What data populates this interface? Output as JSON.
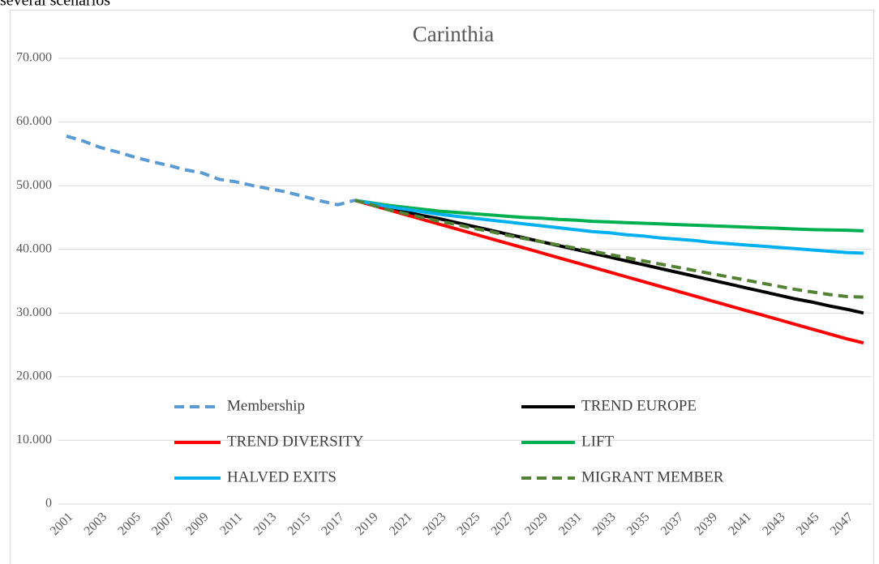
{
  "page_caption": "several scenarios",
  "chart_data": {
    "type": "line",
    "title": "Carinthia",
    "categories": [
      "2001",
      null,
      "2003",
      null,
      "2005",
      null,
      "2007",
      null,
      "2009",
      null,
      "2011",
      null,
      "2013",
      null,
      "2015",
      null,
      "2017",
      null,
      "2019",
      null,
      "2021",
      null,
      "2023",
      null,
      "2025",
      null,
      "2027",
      null,
      "2029",
      null,
      "2031",
      null,
      "2033",
      null,
      "2035",
      null,
      "2037",
      null,
      "2039",
      null,
      "2041",
      null,
      "2043",
      null,
      "2045",
      null,
      "2047",
      null
    ],
    "ylim": [
      0,
      70000
    ],
    "yticks": [
      0,
      {
        "value": 10000,
        "label": "10.000"
      },
      {
        "value": 20000,
        "label": "20.000"
      },
      {
        "value": 30000,
        "label": "30.000"
      },
      {
        "value": 40000,
        "label": "40.000"
      },
      {
        "value": 50000,
        "label": "50.000"
      },
      {
        "value": 60000,
        "label": "60.000"
      },
      {
        "value": 70000,
        "label": "70.000"
      }
    ],
    "grid": true,
    "legend": "bottom",
    "series": [
      {
        "name": "Membership",
        "color": "#5b9bd5",
        "dashed": true,
        "values": [
          57800,
          57000,
          56000,
          55300,
          54500,
          53800,
          53200,
          52500,
          52000,
          51000,
          50600,
          50000,
          49500,
          49000,
          48300,
          47600,
          47000,
          47700,
          null,
          null,
          null,
          null,
          null,
          null,
          null,
          null,
          null,
          null,
          null,
          null,
          null,
          null,
          null,
          null,
          null,
          null,
          null,
          null,
          null,
          null,
          null,
          null,
          null,
          null,
          null,
          null,
          null,
          null
        ]
      },
      {
        "name": "TREND EUROPE",
        "color": "#000000",
        "dashed": false,
        "values": [
          null,
          null,
          null,
          null,
          null,
          null,
          null,
          null,
          null,
          null,
          null,
          null,
          null,
          null,
          null,
          null,
          null,
          47700,
          47100,
          46500,
          45900,
          45300,
          44800,
          44200,
          43600,
          43000,
          42400,
          41800,
          41200,
          40600,
          40000,
          39400,
          38800,
          38200,
          37600,
          37000,
          36400,
          35800,
          35200,
          34600,
          34000,
          33400,
          32800,
          32200,
          31700,
          31100,
          30600,
          30000
        ]
      },
      {
        "name": "TREND DIVERSITY",
        "color": "#ff0000",
        "dashed": false,
        "values": [
          null,
          null,
          null,
          null,
          null,
          null,
          null,
          null,
          null,
          null,
          null,
          null,
          null,
          null,
          null,
          null,
          null,
          47700,
          46950,
          46200,
          45450,
          44700,
          43950,
          43200,
          42450,
          41700,
          40950,
          40200,
          39450,
          38700,
          37950,
          37200,
          36450,
          35700,
          34950,
          34200,
          33450,
          32700,
          31950,
          31200,
          30450,
          29700,
          28950,
          28200,
          27450,
          26700,
          25950,
          25300
        ]
      },
      {
        "name": "LIFT",
        "color": "#00b050",
        "dashed": false,
        "values": [
          null,
          null,
          null,
          null,
          null,
          null,
          null,
          null,
          null,
          null,
          null,
          null,
          null,
          null,
          null,
          null,
          null,
          47700,
          47300,
          46900,
          46600,
          46300,
          46000,
          45800,
          45600,
          45400,
          45200,
          45000,
          44900,
          44700,
          44600,
          44400,
          44300,
          44200,
          44100,
          44000,
          43900,
          43800,
          43700,
          43600,
          43500,
          43400,
          43300,
          43200,
          43100,
          43050,
          43000,
          42900
        ]
      },
      {
        "name": "HALVED EXITS",
        "color": "#00b0f0",
        "dashed": false,
        "values": [
          null,
          null,
          null,
          null,
          null,
          null,
          null,
          null,
          null,
          null,
          null,
          null,
          null,
          null,
          null,
          null,
          null,
          47700,
          47200,
          46700,
          46300,
          45900,
          45500,
          45200,
          44900,
          44600,
          44300,
          44000,
          43700,
          43400,
          43100,
          42800,
          42600,
          42300,
          42100,
          41800,
          41600,
          41400,
          41100,
          40900,
          40700,
          40500,
          40300,
          40100,
          39900,
          39700,
          39500,
          39400
        ]
      },
      {
        "name": "MIGRANT MEMBER",
        "color": "#548235",
        "dashed": true,
        "values": [
          null,
          null,
          null,
          null,
          null,
          null,
          null,
          null,
          null,
          null,
          null,
          null,
          null,
          null,
          null,
          null,
          null,
          47700,
          47000,
          46200,
          45600,
          45000,
          44400,
          43900,
          43300,
          42800,
          42200,
          41700,
          41200,
          40700,
          40200,
          39700,
          39200,
          38700,
          38200,
          37700,
          37200,
          36700,
          36200,
          35700,
          35200,
          34700,
          34200,
          33700,
          33300,
          32900,
          32600,
          32500
        ]
      }
    ]
  }
}
